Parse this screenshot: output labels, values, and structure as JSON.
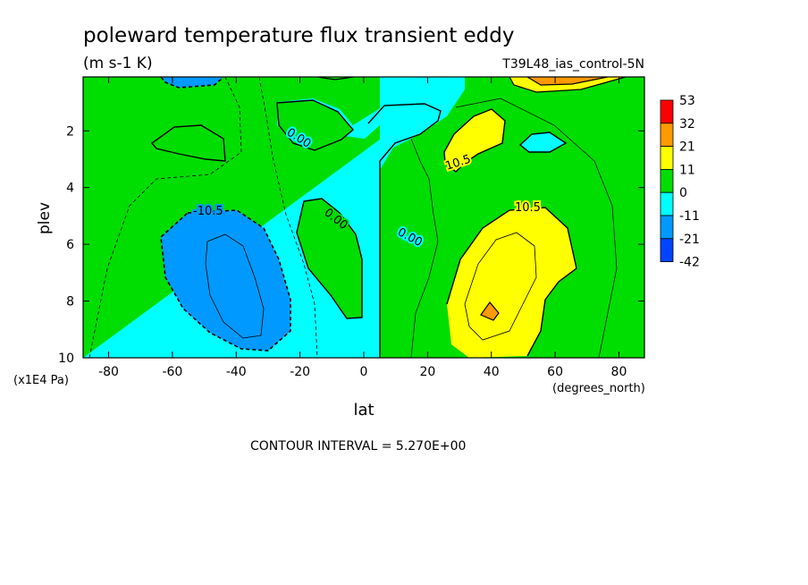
{
  "chart_data": {
    "type": "contour",
    "title": "poleward temperature flux transient eddy",
    "units": "(m s-1 K)",
    "dataset_label": "T39L48_ias_control-5N",
    "xlabel": "lat",
    "x_units": "(degrees_north)",
    "ylabel": "plev",
    "y_units": "(x1E4 Pa)",
    "xlim": [
      -88,
      88
    ],
    "ylim": [
      10,
      0.1
    ],
    "y_inverted": true,
    "x_ticks": [
      -80,
      -60,
      -40,
      -20,
      0,
      20,
      40,
      60,
      80
    ],
    "y_ticks": [
      2,
      4,
      6,
      8,
      10
    ],
    "contour_interval_text": "CONTOUR INTERVAL = 5.270E+00",
    "contour_labels": [
      "0.00",
      "0.00",
      "0.00",
      "10.5",
      "10.5",
      "-10.5"
    ],
    "colorbar": {
      "labels": [
        "53",
        "32",
        "21",
        "11",
        "0",
        "-11",
        "-21",
        "-42"
      ],
      "colors": [
        "#ff0000",
        "#ff9900",
        "#ffff00",
        "#00dd00",
        "#00ffff",
        "#0099ff",
        "#0044ff"
      ]
    }
  }
}
